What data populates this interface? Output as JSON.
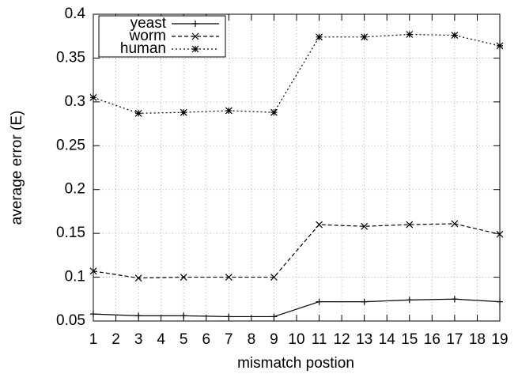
{
  "chart_data": {
    "type": "line",
    "xlabel": "mismatch postion",
    "ylabel": "average error (E)",
    "x": [
      1,
      3,
      5,
      7,
      9,
      11,
      13,
      15,
      17,
      19
    ],
    "series": [
      {
        "name": "yeast",
        "color": "#000000",
        "line_style": "solid",
        "marker": "plus",
        "values": [
          0.058,
          0.056,
          0.056,
          0.055,
          0.055,
          0.072,
          0.072,
          0.074,
          0.075,
          0.072
        ]
      },
      {
        "name": "worm",
        "color": "#000000",
        "line_style": "dashed",
        "marker": "cross",
        "values": [
          0.107,
          0.099,
          0.1,
          0.1,
          0.1,
          0.16,
          0.158,
          0.16,
          0.161,
          0.149
        ]
      },
      {
        "name": "human",
        "color": "#000000",
        "line_style": "dotted",
        "marker": "star",
        "values": [
          0.305,
          0.287,
          0.288,
          0.29,
          0.288,
          0.374,
          0.374,
          0.377,
          0.376,
          0.364
        ]
      }
    ],
    "xlim": [
      1,
      19
    ],
    "xticks": [
      1,
      2,
      3,
      4,
      5,
      6,
      7,
      8,
      9,
      10,
      11,
      12,
      13,
      14,
      15,
      16,
      17,
      18,
      19
    ],
    "ylim": [
      0.05,
      0.4
    ],
    "yticks": [
      0.05,
      0.1,
      0.15,
      0.2,
      0.25,
      0.3,
      0.35,
      0.4
    ],
    "grid": true,
    "legend_position": "upper-left"
  }
}
